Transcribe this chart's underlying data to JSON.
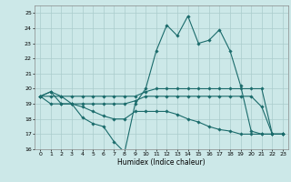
{
  "xlabel": "Humidex (Indice chaleur)",
  "bg_color": "#cce8e8",
  "grid_color": "#aacccc",
  "line_color": "#1a6b6b",
  "xlim": [
    -0.5,
    23.5
  ],
  "ylim": [
    16,
    25.5
  ],
  "yticks": [
    16,
    17,
    18,
    19,
    20,
    21,
    22,
    23,
    24,
    25
  ],
  "xticks": [
    0,
    1,
    2,
    3,
    4,
    5,
    6,
    7,
    8,
    9,
    10,
    11,
    12,
    13,
    14,
    15,
    16,
    17,
    18,
    19,
    20,
    21,
    22,
    23
  ],
  "series": [
    [
      19.5,
      19.8,
      19.0,
      19.0,
      18.1,
      17.7,
      17.5,
      16.5,
      15.8,
      19.0,
      20.0,
      22.5,
      24.2,
      23.5,
      24.8,
      23.0,
      23.2,
      23.9,
      22.5,
      20.2,
      17.2,
      17.0,
      17.0,
      17.0
    ],
    [
      19.5,
      19.8,
      19.5,
      19.0,
      19.0,
      19.0,
      19.0,
      19.0,
      19.0,
      19.2,
      19.5,
      19.5,
      19.5,
      19.5,
      19.5,
      19.5,
      19.5,
      19.5,
      19.5,
      19.5,
      19.5,
      18.8,
      17.0,
      17.0
    ],
    [
      19.5,
      19.0,
      19.0,
      19.0,
      18.8,
      18.5,
      18.2,
      18.0,
      18.0,
      18.5,
      18.5,
      18.5,
      18.5,
      18.3,
      18.0,
      17.8,
      17.5,
      17.3,
      17.2,
      17.0,
      17.0,
      17.0,
      17.0,
      17.0
    ],
    [
      19.5,
      19.5,
      19.5,
      19.5,
      19.5,
      19.5,
      19.5,
      19.5,
      19.5,
      19.5,
      19.8,
      20.0,
      20.0,
      20.0,
      20.0,
      20.0,
      20.0,
      20.0,
      20.0,
      20.0,
      20.0,
      20.0,
      17.0,
      17.0
    ]
  ],
  "figsize": [
    3.2,
    2.0
  ],
  "dpi": 100
}
